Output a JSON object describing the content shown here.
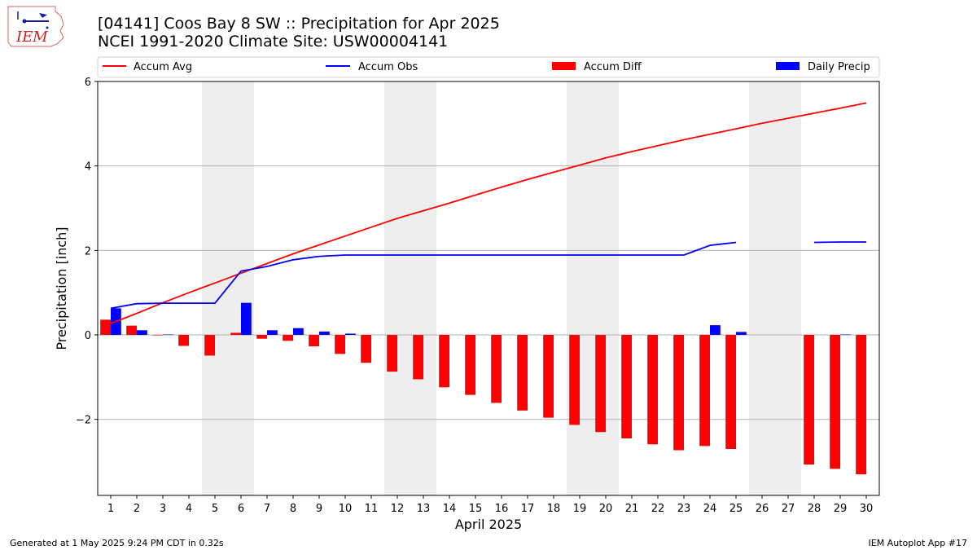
{
  "header": {
    "title_line1": "[04141] Coos Bay 8 SW :: Precipitation for Apr 2025",
    "title_line2": "NCEI 1991-2020 Climate Site: USW00004141",
    "logo_text": "IEM"
  },
  "footer": {
    "left": "Generated at 1 May 2025 9:24 PM CDT in 0.32s",
    "right": "IEM Autoplot App #17"
  },
  "chart_data": {
    "type": "bar",
    "xlabel": "April 2025",
    "ylabel": "Precipitation [inch]",
    "xlim": [
      0.5,
      30.5
    ],
    "ylim": [
      -3.8,
      6
    ],
    "yticks": [
      -2,
      0,
      2,
      4,
      6
    ],
    "ytick_labels": [
      "−2",
      "0",
      "2",
      "4",
      "6"
    ],
    "categories": [
      "1",
      "2",
      "3",
      "4",
      "5",
      "6",
      "7",
      "8",
      "9",
      "10",
      "11",
      "12",
      "13",
      "14",
      "15",
      "16",
      "17",
      "18",
      "19",
      "20",
      "21",
      "22",
      "23",
      "24",
      "25",
      "26",
      "27",
      "28",
      "29",
      "30"
    ],
    "grid": true,
    "legend_placement": "top, spanning width",
    "weekend_shading": [
      [
        5,
        6
      ],
      [
        12,
        13
      ],
      [
        19,
        20
      ],
      [
        26,
        27
      ]
    ],
    "colors": {
      "accum_avg": "#ff0000",
      "accum_obs": "#0000ff",
      "accum_diff": "#ff0000",
      "daily_precip": "#0000ff",
      "shade": "#eeeeee",
      "grid": "#b0b0b0"
    },
    "series": [
      {
        "name": "Accum Avg",
        "kind": "line",
        "color": "#ff0000",
        "values": [
          0.27,
          0.51,
          0.76,
          1.0,
          1.23,
          1.46,
          1.69,
          1.92,
          2.13,
          2.34,
          2.55,
          2.76,
          2.94,
          3.12,
          3.31,
          3.5,
          3.68,
          3.85,
          4.02,
          4.19,
          4.34,
          4.48,
          4.62,
          4.75,
          4.88,
          5.01,
          5.13,
          5.25,
          5.37,
          5.49
        ]
      },
      {
        "name": "Accum Obs",
        "kind": "line",
        "color": "#0000ff",
        "values": [
          0.63,
          0.74,
          0.75,
          0.75,
          0.75,
          1.51,
          1.62,
          1.78,
          1.86,
          1.89,
          1.89,
          1.89,
          1.89,
          1.89,
          1.89,
          1.89,
          1.89,
          1.89,
          1.89,
          1.89,
          1.89,
          1.89,
          1.89,
          2.12,
          2.19,
          null,
          null,
          2.19,
          2.2,
          2.2
        ]
      },
      {
        "name": "Accum Diff",
        "kind": "bar",
        "color": "#ff0000",
        "values": [
          0.36,
          0.22,
          -0.01,
          -0.26,
          -0.49,
          0.05,
          -0.09,
          -0.14,
          -0.27,
          -0.45,
          -0.66,
          -0.87,
          -1.05,
          -1.24,
          -1.42,
          -1.61,
          -1.79,
          -1.96,
          -2.13,
          -2.3,
          -2.45,
          -2.59,
          -2.73,
          -2.63,
          -2.7,
          null,
          null,
          -3.07,
          -3.17,
          -3.3
        ]
      },
      {
        "name": "Daily Precip",
        "kind": "bar",
        "color": "#0000ff",
        "values": [
          0.63,
          0.11,
          0.01,
          0.0,
          0.0,
          0.76,
          0.11,
          0.16,
          0.08,
          0.03,
          0.0,
          0.0,
          0.0,
          0.0,
          0.0,
          0.0,
          0.0,
          0.0,
          0.0,
          0.0,
          0.0,
          0.0,
          0.0,
          0.23,
          0.07,
          null,
          null,
          0.0,
          0.01,
          0.0
        ]
      }
    ]
  }
}
